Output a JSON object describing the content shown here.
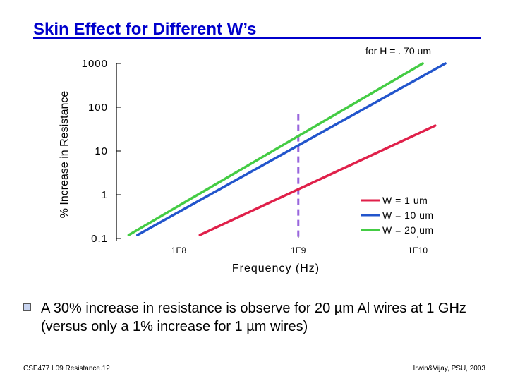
{
  "slide": {
    "title": "Skin Effect for Different W’s",
    "bullet_text": "A 30% increase in resistance is observe for 20 µm Al wires at 1 GHz (versus only a 1% increase for 1 µm wires)",
    "footer_left": "CSE477  L09 Resistance.12",
    "footer_right": "Irwin&Vijay, PSU, 2003"
  },
  "chart_data": {
    "type": "line",
    "title": "",
    "subtitle": "for H = . 70 um",
    "xlabel": "Frequency (Hz)",
    "ylabel": "% Increase in Resistance",
    "x_scale": "log",
    "y_scale": "log",
    "xlim": [
      30000000,
      20000000000
    ],
    "ylim": [
      0.1,
      1000
    ],
    "x_ticks": [
      {
        "value": 100000000,
        "label": "1E8"
      },
      {
        "value": 1000000000,
        "label": "1E9"
      },
      {
        "value": 10000000000,
        "label": "1E10"
      }
    ],
    "y_ticks": [
      {
        "value": 0.1,
        "label": "0.1"
      },
      {
        "value": 1,
        "label": "1"
      },
      {
        "value": 10,
        "label": "10"
      },
      {
        "value": 100,
        "label": "100"
      },
      {
        "value": 1000,
        "label": "1000"
      }
    ],
    "series": [
      {
        "name": "W = 1 um",
        "color": "#e0204a",
        "x": [
          150000000,
          14000000000
        ],
        "y": [
          0.12,
          38
        ]
      },
      {
        "name": "W = 10 um",
        "color": "#2255cc",
        "x": [
          45000000,
          17000000000
        ],
        "y": [
          0.12,
          1000
        ]
      },
      {
        "name": "W = 20 um",
        "color": "#44cc44",
        "x": [
          38000000,
          11000000000
        ],
        "y": [
          0.12,
          1000
        ]
      }
    ],
    "marker_line": {
      "x": 1000000000,
      "color": "#9966dd",
      "style": "dashed"
    },
    "legend_position": "bottom-right"
  }
}
